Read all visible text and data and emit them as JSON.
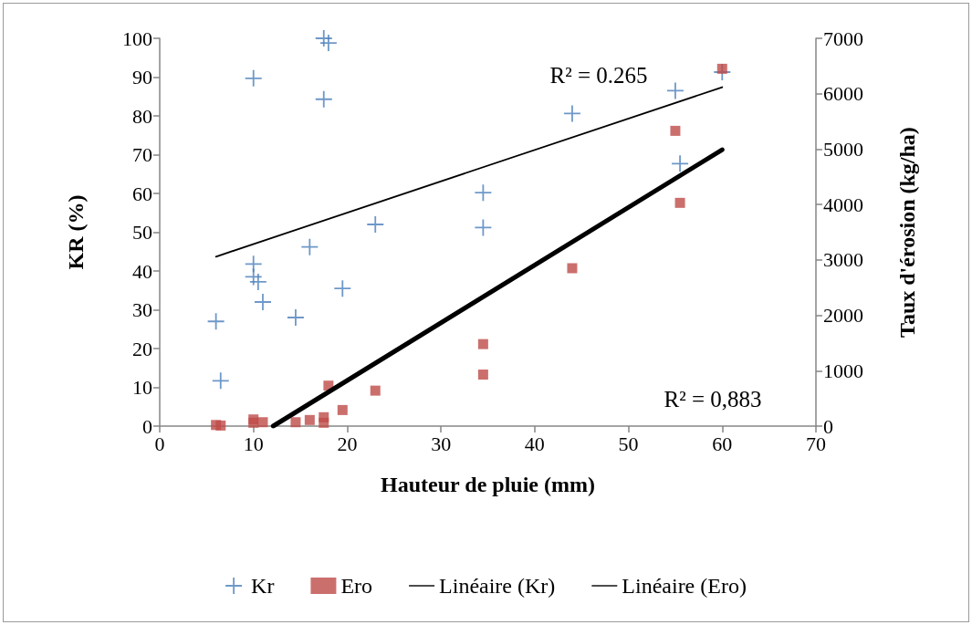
{
  "chart_data": {
    "type": "scatter",
    "xlabel": "Hauteur de pluie (mm)",
    "ylabel": "KR (%)",
    "y2label": "Taux d'érosion (kg/ha)",
    "xlim": [
      0,
      70
    ],
    "xticks": [
      0,
      10,
      20,
      30,
      40,
      50,
      60,
      70
    ],
    "ylim": [
      0,
      100
    ],
    "yticks": [
      0,
      10,
      20,
      30,
      40,
      50,
      60,
      70,
      80,
      90,
      100
    ],
    "y2lim": [
      0,
      7000
    ],
    "y2ticks": [
      0,
      1000,
      2000,
      3000,
      4000,
      5000,
      6000,
      7000
    ],
    "grid": false,
    "legend": "bottom",
    "series": [
      {
        "name": "Kr",
        "color": "#4a7ebb",
        "marker": "cross",
        "x": [
          6,
          6.5,
          10,
          10,
          10,
          10.5,
          11,
          14.5,
          16,
          17.5,
          18,
          17.5,
          19.5,
          23,
          34.5,
          34.5,
          44,
          55,
          55.5,
          60
        ],
        "values": [
          27,
          11.7,
          89.7,
          41.8,
          38.5,
          37.2,
          32,
          28,
          46.2,
          100,
          98.8,
          84.3,
          35.5,
          52,
          60.2,
          51.2,
          80.6,
          86.5,
          67.7,
          91.3
        ]
      },
      {
        "name": "Ero",
        "color": "#be4b48",
        "marker": "square",
        "axis": "y2",
        "x": [
          6,
          6.5,
          10,
          10,
          11,
          14.5,
          16,
          17.5,
          17.5,
          18,
          19.5,
          23,
          34.5,
          34.5,
          44,
          55,
          55.5,
          60
        ],
        "values": [
          20,
          10,
          120,
          60,
          70,
          70,
          110,
          160,
          60,
          730,
          290,
          640,
          1480,
          930,
          2850,
          5330,
          4030,
          6450
        ]
      },
      {
        "name": "Linéaire (Kr)",
        "type": "line",
        "color": "#000000",
        "marker": "none",
        "x": [
          6,
          60
        ],
        "values": [
          43.7,
          87.4
        ]
      },
      {
        "name": "Linéaire (Ero)",
        "type": "line",
        "color": "#000000",
        "marker": "none",
        "axis": "y2",
        "x": [
          12.1,
          60
        ],
        "values": [
          0,
          4990
        ]
      }
    ],
    "annotations": [
      "R² = 0.265",
      "R² = 0,883"
    ]
  }
}
